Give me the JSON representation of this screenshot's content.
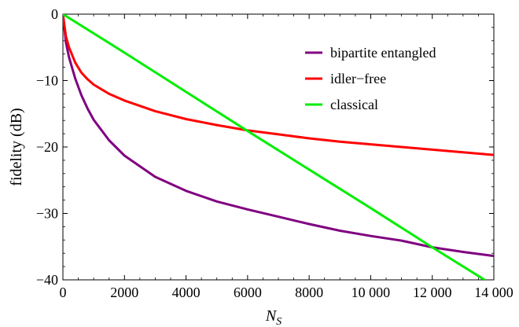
{
  "chart_data": {
    "type": "line",
    "xlabel": "N",
    "xlabel_sub": "S",
    "ylabel": "fidelity (dB)",
    "xlim": [
      0,
      14000
    ],
    "ylim": [
      -40,
      0
    ],
    "x_ticks": [
      0,
      2000,
      4000,
      6000,
      8000,
      10000,
      12000,
      14000
    ],
    "x_tick_labels": [
      "0",
      "2000",
      "4000",
      "6000",
      "8000",
      "10 000",
      "12 000",
      "14 000"
    ],
    "y_ticks": [
      0,
      -10,
      -20,
      -30,
      -40
    ],
    "y_tick_labels": [
      "0",
      "−10",
      "−20",
      "−30",
      "−40"
    ],
    "grid": false,
    "legend_position": "top-right",
    "series": [
      {
        "name": "bipartite entangled",
        "color": "#800080",
        "points": [
          [
            0,
            0
          ],
          [
            100,
            -4.3
          ],
          [
            200,
            -6.5
          ],
          [
            400,
            -9.7
          ],
          [
            600,
            -12.2
          ],
          [
            800,
            -14.2
          ],
          [
            1000,
            -15.9
          ],
          [
            1500,
            -19.0
          ],
          [
            2000,
            -21.3
          ],
          [
            3000,
            -24.5
          ],
          [
            4000,
            -26.6
          ],
          [
            5000,
            -28.2
          ],
          [
            6000,
            -29.4
          ],
          [
            7000,
            -30.5
          ],
          [
            8000,
            -31.6
          ],
          [
            9000,
            -32.6
          ],
          [
            10000,
            -33.4
          ],
          [
            11000,
            -34.1
          ],
          [
            12000,
            -35.1
          ],
          [
            13000,
            -35.8
          ],
          [
            14000,
            -36.4
          ]
        ]
      },
      {
        "name": "idler−free",
        "color": "#ff0000",
        "points": [
          [
            0,
            0
          ],
          [
            100,
            -3.4
          ],
          [
            200,
            -5.0
          ],
          [
            400,
            -7.3
          ],
          [
            600,
            -8.8
          ],
          [
            800,
            -9.8
          ],
          [
            1000,
            -10.6
          ],
          [
            1500,
            -12.0
          ],
          [
            2000,
            -13.0
          ],
          [
            3000,
            -14.6
          ],
          [
            4000,
            -15.8
          ],
          [
            5000,
            -16.7
          ],
          [
            6000,
            -17.5
          ],
          [
            7000,
            -18.1
          ],
          [
            8000,
            -18.7
          ],
          [
            9000,
            -19.2
          ],
          [
            10000,
            -19.6
          ],
          [
            11000,
            -20.0
          ],
          [
            12000,
            -20.4
          ],
          [
            13000,
            -20.8
          ],
          [
            14000,
            -21.2
          ]
        ]
      },
      {
        "name": "classical",
        "color": "#00ee00",
        "points": [
          [
            0,
            0
          ],
          [
            2000,
            -5.8
          ],
          [
            4000,
            -11.7
          ],
          [
            6000,
            -17.6
          ],
          [
            8000,
            -23.4
          ],
          [
            10000,
            -29.2
          ],
          [
            12000,
            -35.1
          ],
          [
            13700,
            -40.0
          ]
        ]
      }
    ]
  }
}
